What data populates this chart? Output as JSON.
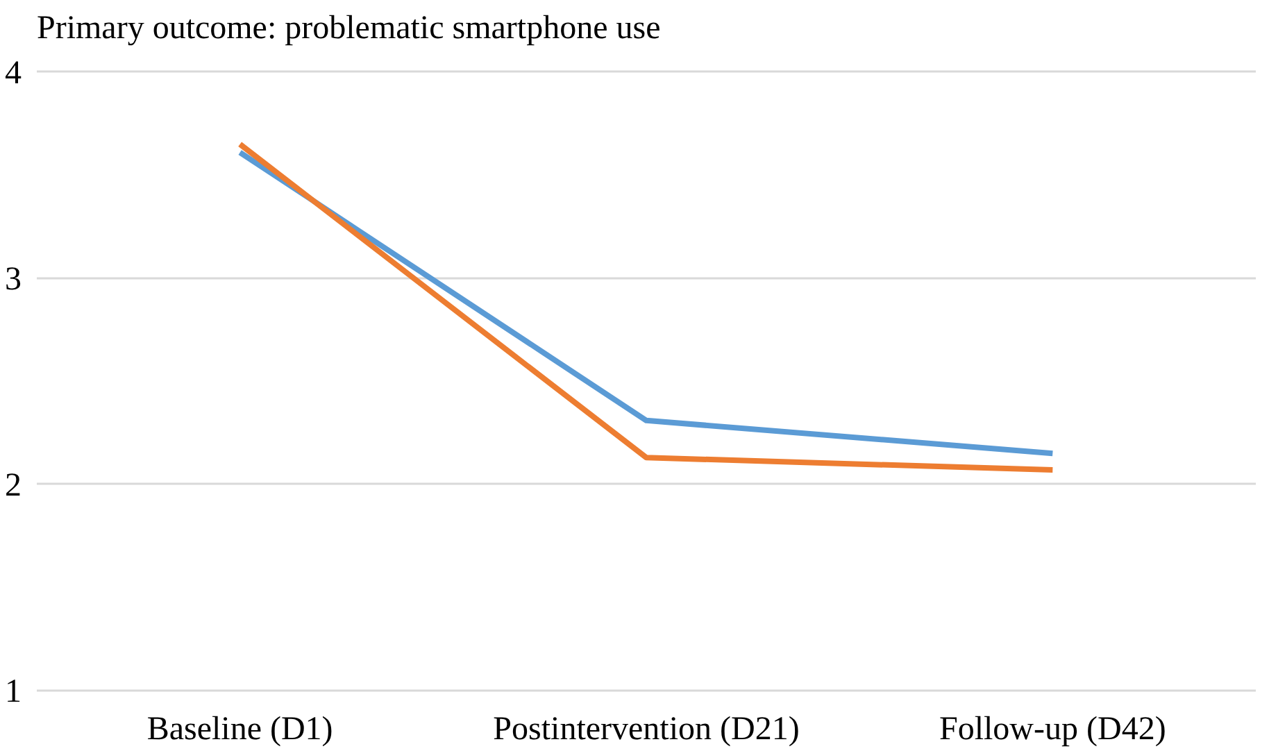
{
  "chart_data": {
    "type": "line",
    "title": "Primary outcome: problematic smartphone use",
    "categories": [
      "Baseline (D1)",
      "Postintervention (D21)",
      "Follow-up (D42)"
    ],
    "series": [
      {
        "color": "#5b9bd5",
        "values": [
          3.61,
          2.31,
          2.15
        ]
      },
      {
        "color": "#ed7d31",
        "values": [
          3.65,
          2.13,
          2.07
        ]
      }
    ],
    "ylim": [
      1,
      4
    ],
    "yticks": [
      1,
      2,
      3,
      4
    ],
    "grid": "y",
    "marker": "none",
    "line_style": "solid"
  }
}
